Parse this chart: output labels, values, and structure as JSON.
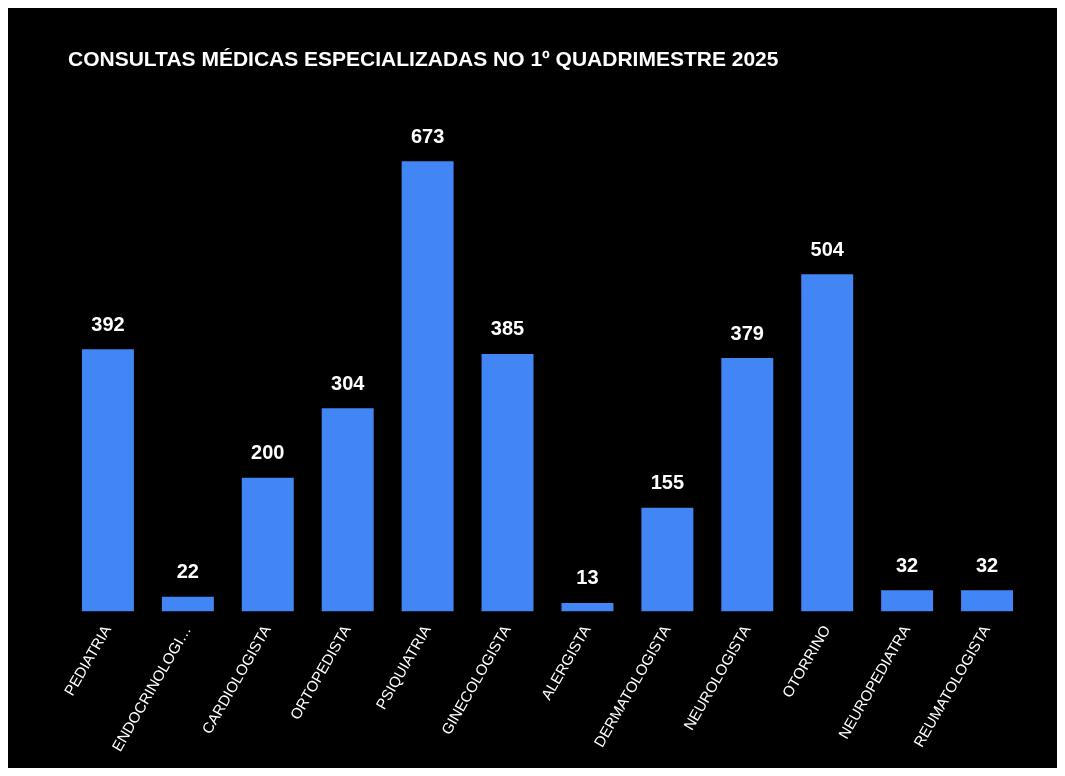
{
  "chart_data": {
    "type": "bar",
    "title": "CONSULTAS MÉDICAS ESPECIALIZADAS NO 1º QUADRIMESTRE 2025",
    "categories": [
      "PEDIATRIA",
      "ENDOCRINOLOGI…",
      "CARDIOLOGISTA",
      "ORTOPEDISTA",
      "PSIQUIATRIA",
      "GINECOLOGISTA",
      "ALERGISTA",
      "DERMATOLOGISTA",
      "NEUROLOGISTA",
      "OTORRINO",
      "NEUROPEDIATRA",
      "REUMATOLOGISTA"
    ],
    "values": [
      392,
      22,
      200,
      304,
      673,
      385,
      13,
      155,
      379,
      504,
      32,
      32
    ],
    "color": "#4285f4",
    "data_labels": true,
    "tick_labels": "x"
  }
}
